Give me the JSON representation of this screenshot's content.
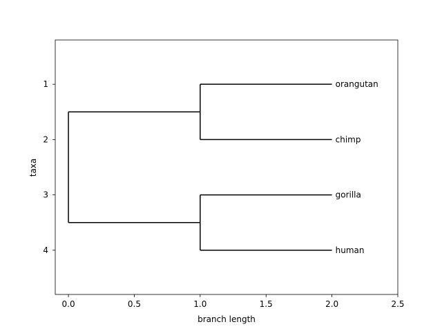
{
  "chart_data": {
    "type": "dendrogram",
    "title": "",
    "xlabel": "branch length",
    "ylabel": "taxa",
    "xlim": [
      -0.1,
      2.5
    ],
    "ylim": [
      4.8,
      0.2
    ],
    "y_inverted": true,
    "grid": false,
    "x_ticks": [
      {
        "value": 0.0,
        "label": "0.0"
      },
      {
        "value": 0.5,
        "label": "0.5"
      },
      {
        "value": 1.0,
        "label": "1.0"
      },
      {
        "value": 1.5,
        "label": "1.5"
      },
      {
        "value": 2.0,
        "label": "2.0"
      },
      {
        "value": 2.5,
        "label": "2.5"
      }
    ],
    "y_ticks": [
      {
        "value": 1,
        "label": "1"
      },
      {
        "value": 2,
        "label": "2"
      },
      {
        "value": 3,
        "label": "3"
      },
      {
        "value": 4,
        "label": "4"
      }
    ],
    "leaves": [
      {
        "name": "orangutan",
        "x": 2.0,
        "y": 1
      },
      {
        "name": "chimp",
        "x": 2.0,
        "y": 2
      },
      {
        "name": "gorilla",
        "x": 2.0,
        "y": 3
      },
      {
        "name": "human",
        "x": 2.0,
        "y": 4
      }
    ],
    "segments": [
      {
        "id": "root-vertical",
        "x1": 0.0,
        "y1": 1.5,
        "x2": 0.0,
        "y2": 3.5
      },
      {
        "id": "root-to-clade-a",
        "x1": 0.0,
        "y1": 1.5,
        "x2": 1.0,
        "y2": 1.5
      },
      {
        "id": "root-to-clade-b",
        "x1": 0.0,
        "y1": 3.5,
        "x2": 1.0,
        "y2": 3.5
      },
      {
        "id": "clade-a-vertical",
        "x1": 1.0,
        "y1": 1,
        "x2": 1.0,
        "y2": 2
      },
      {
        "id": "clade-b-vertical",
        "x1": 1.0,
        "y1": 3,
        "x2": 1.0,
        "y2": 4
      },
      {
        "id": "branch-orangutan",
        "x1": 1.0,
        "y1": 1,
        "x2": 2.0,
        "y2": 1
      },
      {
        "id": "branch-chimp",
        "x1": 1.0,
        "y1": 2,
        "x2": 2.0,
        "y2": 2
      },
      {
        "id": "branch-gorilla",
        "x1": 1.0,
        "y1": 3,
        "x2": 2.0,
        "y2": 3
      },
      {
        "id": "branch-human",
        "x1": 1.0,
        "y1": 4,
        "x2": 2.0,
        "y2": 4
      }
    ]
  }
}
